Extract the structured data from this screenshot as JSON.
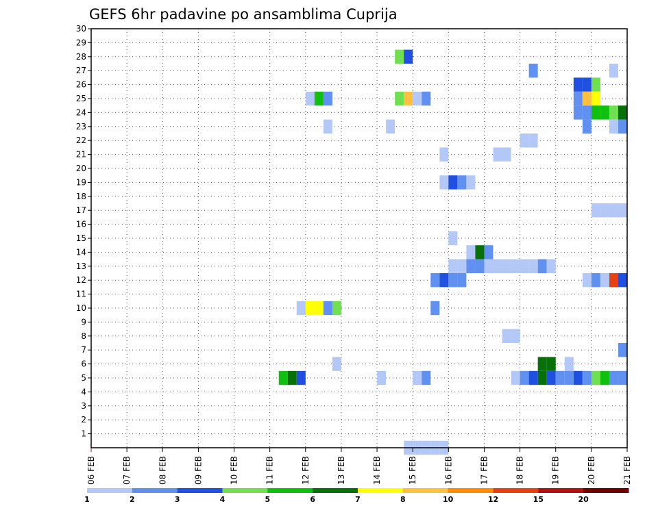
{
  "chart_data": {
    "type": "heatmap",
    "title": "GEFS 6hr padavine po ansamblima Cuprija",
    "xlabel": "",
    "ylabel": "",
    "x_ticks": [
      "06 FEB",
      "07 FEB",
      "08 FEB",
      "09 FEB",
      "10 FEB",
      "11 FEB",
      "12 FEB",
      "13 FEB",
      "14 FEB",
      "15 FEB",
      "16 FEB",
      "17 FEB",
      "18 FEB",
      "19 FEB",
      "20 FEB",
      "21 FEB"
    ],
    "y_ticks": [
      1,
      2,
      3,
      4,
      5,
      6,
      7,
      8,
      9,
      10,
      11,
      12,
      13,
      14,
      15,
      16,
      17,
      18,
      19,
      20,
      21,
      22,
      23,
      24,
      25,
      26,
      27,
      28,
      29,
      30
    ],
    "x_range_steps": [
      0,
      60
    ],
    "x_step_unit": "6hr",
    "ylim": [
      0,
      30
    ],
    "grid": true,
    "colorbar": {
      "labels": [
        "1",
        "2",
        "3",
        "4",
        "5",
        "6",
        "7",
        "8",
        "10",
        "12",
        "15",
        "20"
      ],
      "colors": [
        "#b4c8f8",
        "#6090f0",
        "#2050e0",
        "#70e050",
        "#10c010",
        "#087008",
        "#ffff00",
        "#ffc040",
        "#ff8c00",
        "#e84010",
        "#b01010",
        "#700000"
      ]
    },
    "cells": [
      {
        "x": 35,
        "y": 28,
        "c": 4
      },
      {
        "x": 36,
        "y": 28,
        "c": 3
      },
      {
        "x": 50,
        "y": 27,
        "c": 2
      },
      {
        "x": 59,
        "y": 27,
        "c": 1
      },
      {
        "x": 55,
        "y": 26,
        "c": 3
      },
      {
        "x": 56,
        "y": 26,
        "c": 3
      },
      {
        "x": 57,
        "y": 26,
        "c": 4
      },
      {
        "x": 25,
        "y": 25,
        "c": 1
      },
      {
        "x": 26,
        "y": 25,
        "c": 5
      },
      {
        "x": 27,
        "y": 25,
        "c": 2
      },
      {
        "x": 35,
        "y": 25,
        "c": 4
      },
      {
        "x": 36,
        "y": 25,
        "c": 8
      },
      {
        "x": 37,
        "y": 25,
        "c": 1
      },
      {
        "x": 38,
        "y": 25,
        "c": 2
      },
      {
        "x": 55,
        "y": 25,
        "c": 2
      },
      {
        "x": 56,
        "y": 25,
        "c": 8
      },
      {
        "x": 57,
        "y": 25,
        "c": 7
      },
      {
        "x": 55,
        "y": 24,
        "c": 2
      },
      {
        "x": 56,
        "y": 24,
        "c": 2
      },
      {
        "x": 57,
        "y": 24,
        "c": 5
      },
      {
        "x": 58,
        "y": 24,
        "c": 5
      },
      {
        "x": 59,
        "y": 24,
        "c": 4
      },
      {
        "x": 60,
        "y": 24,
        "c": 6
      },
      {
        "x": 27,
        "y": 23,
        "c": 1
      },
      {
        "x": 34,
        "y": 23,
        "c": 1
      },
      {
        "x": 56,
        "y": 23,
        "c": 2
      },
      {
        "x": 59,
        "y": 23,
        "c": 1
      },
      {
        "x": 60,
        "y": 23,
        "c": 2
      },
      {
        "x": 49,
        "y": 22,
        "c": 1
      },
      {
        "x": 50,
        "y": 22,
        "c": 1
      },
      {
        "x": 40,
        "y": 21,
        "c": 1
      },
      {
        "x": 46,
        "y": 21,
        "c": 1
      },
      {
        "x": 47,
        "y": 21,
        "c": 1
      },
      {
        "x": 40,
        "y": 19,
        "c": 1
      },
      {
        "x": 41,
        "y": 19,
        "c": 3
      },
      {
        "x": 42,
        "y": 19,
        "c": 2
      },
      {
        "x": 43,
        "y": 19,
        "c": 1
      },
      {
        "x": 57,
        "y": 17,
        "c": 1
      },
      {
        "x": 58,
        "y": 17,
        "c": 1
      },
      {
        "x": 59,
        "y": 17,
        "c": 1
      },
      {
        "x": 60,
        "y": 17,
        "c": 1
      },
      {
        "x": 41,
        "y": 15,
        "c": 1
      },
      {
        "x": 43,
        "y": 14,
        "c": 1
      },
      {
        "x": 44,
        "y": 14,
        "c": 6
      },
      {
        "x": 45,
        "y": 14,
        "c": 2
      },
      {
        "x": 41,
        "y": 13,
        "c": 1
      },
      {
        "x": 42,
        "y": 13,
        "c": 1
      },
      {
        "x": 43,
        "y": 13,
        "c": 2
      },
      {
        "x": 44,
        "y": 13,
        "c": 2
      },
      {
        "x": 45,
        "y": 13,
        "c": 1
      },
      {
        "x": 46,
        "y": 13,
        "c": 1
      },
      {
        "x": 47,
        "y": 13,
        "c": 1
      },
      {
        "x": 48,
        "y": 13,
        "c": 1
      },
      {
        "x": 49,
        "y": 13,
        "c": 1
      },
      {
        "x": 50,
        "y": 13,
        "c": 1
      },
      {
        "x": 51,
        "y": 13,
        "c": 2
      },
      {
        "x": 52,
        "y": 13,
        "c": 1
      },
      {
        "x": 39,
        "y": 12,
        "c": 2
      },
      {
        "x": 40,
        "y": 12,
        "c": 3
      },
      {
        "x": 41,
        "y": 12,
        "c": 2
      },
      {
        "x": 42,
        "y": 12,
        "c": 2
      },
      {
        "x": 56,
        "y": 12,
        "c": 1
      },
      {
        "x": 57,
        "y": 12,
        "c": 2
      },
      {
        "x": 58,
        "y": 12,
        "c": 1
      },
      {
        "x": 59,
        "y": 12,
        "c": 10
      },
      {
        "x": 60,
        "y": 12,
        "c": 3
      },
      {
        "x": 24,
        "y": 10,
        "c": 1
      },
      {
        "x": 25,
        "y": 10,
        "c": 7
      },
      {
        "x": 26,
        "y": 10,
        "c": 7
      },
      {
        "x": 27,
        "y": 10,
        "c": 2
      },
      {
        "x": 28,
        "y": 10,
        "c": 4
      },
      {
        "x": 39,
        "y": 10,
        "c": 2
      },
      {
        "x": 47,
        "y": 8,
        "c": 1
      },
      {
        "x": 48,
        "y": 8,
        "c": 1
      },
      {
        "x": 60,
        "y": 7,
        "c": 2
      },
      {
        "x": 28,
        "y": 6,
        "c": 1
      },
      {
        "x": 51,
        "y": 6,
        "c": 6
      },
      {
        "x": 52,
        "y": 6,
        "c": 6
      },
      {
        "x": 54,
        "y": 6,
        "c": 1
      },
      {
        "x": 22,
        "y": 5,
        "c": 5
      },
      {
        "x": 23,
        "y": 5,
        "c": 6
      },
      {
        "x": 24,
        "y": 5,
        "c": 3
      },
      {
        "x": 37,
        "y": 5,
        "c": 1
      },
      {
        "x": 33,
        "y": 5,
        "c": 1
      },
      {
        "x": 38,
        "y": 5,
        "c": 2
      },
      {
        "x": 48,
        "y": 5,
        "c": 1
      },
      {
        "x": 49,
        "y": 5,
        "c": 2
      },
      {
        "x": 50,
        "y": 5,
        "c": 3
      },
      {
        "x": 51,
        "y": 5,
        "c": 6
      },
      {
        "x": 52,
        "y": 5,
        "c": 3
      },
      {
        "x": 53,
        "y": 5,
        "c": 2
      },
      {
        "x": 54,
        "y": 5,
        "c": 2
      },
      {
        "x": 55,
        "y": 5,
        "c": 3
      },
      {
        "x": 56,
        "y": 5,
        "c": 2
      },
      {
        "x": 57,
        "y": 5,
        "c": 4
      },
      {
        "x": 58,
        "y": 5,
        "c": 5
      },
      {
        "x": 59,
        "y": 5,
        "c": 2
      },
      {
        "x": 60,
        "y": 5,
        "c": 2
      },
      {
        "x": 36,
        "y": 0,
        "c": 1
      },
      {
        "x": 37,
        "y": 0,
        "c": 1
      },
      {
        "x": 38,
        "y": 0,
        "c": 1
      },
      {
        "x": 39,
        "y": 0,
        "c": 1
      },
      {
        "x": 40,
        "y": 0,
        "c": 1
      }
    ]
  }
}
